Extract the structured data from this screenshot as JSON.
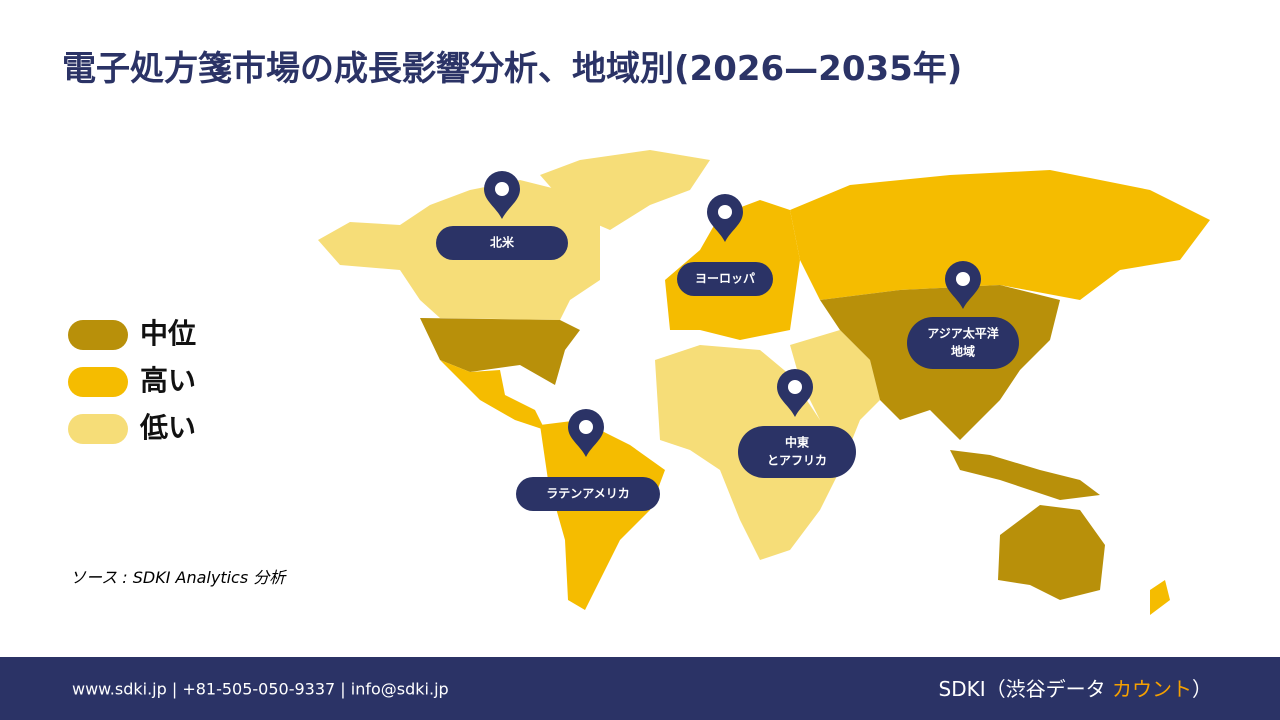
{
  "title": "電子処方箋市場の成長影響分析、地域別(2026—2035年)",
  "legend": [
    {
      "label": "中位",
      "color": "#b8900a"
    },
    {
      "label": "高い",
      "color": "#f5bc00"
    },
    {
      "label": "低い",
      "color": "#f6dd78"
    }
  ],
  "regions": [
    {
      "lines": [
        "北米"
      ]
    },
    {
      "lines": [
        "ヨーロッパ"
      ]
    },
    {
      "lines": [
        "アジア太平洋",
        "地域"
      ]
    },
    {
      "lines": [
        "中東",
        "とアフリカ"
      ]
    },
    {
      "lines": [
        "ラテンアメリカ"
      ]
    }
  ],
  "source": "ソース : SDKI Analytics 分析",
  "footer": {
    "contact": "www.sdki.jp | +81-505-050-9337 | info@sdki.jp",
    "brand": "SDKI（渋谷データ ",
    "brand_highlight": "カウント",
    "brand_end": "）"
  }
}
